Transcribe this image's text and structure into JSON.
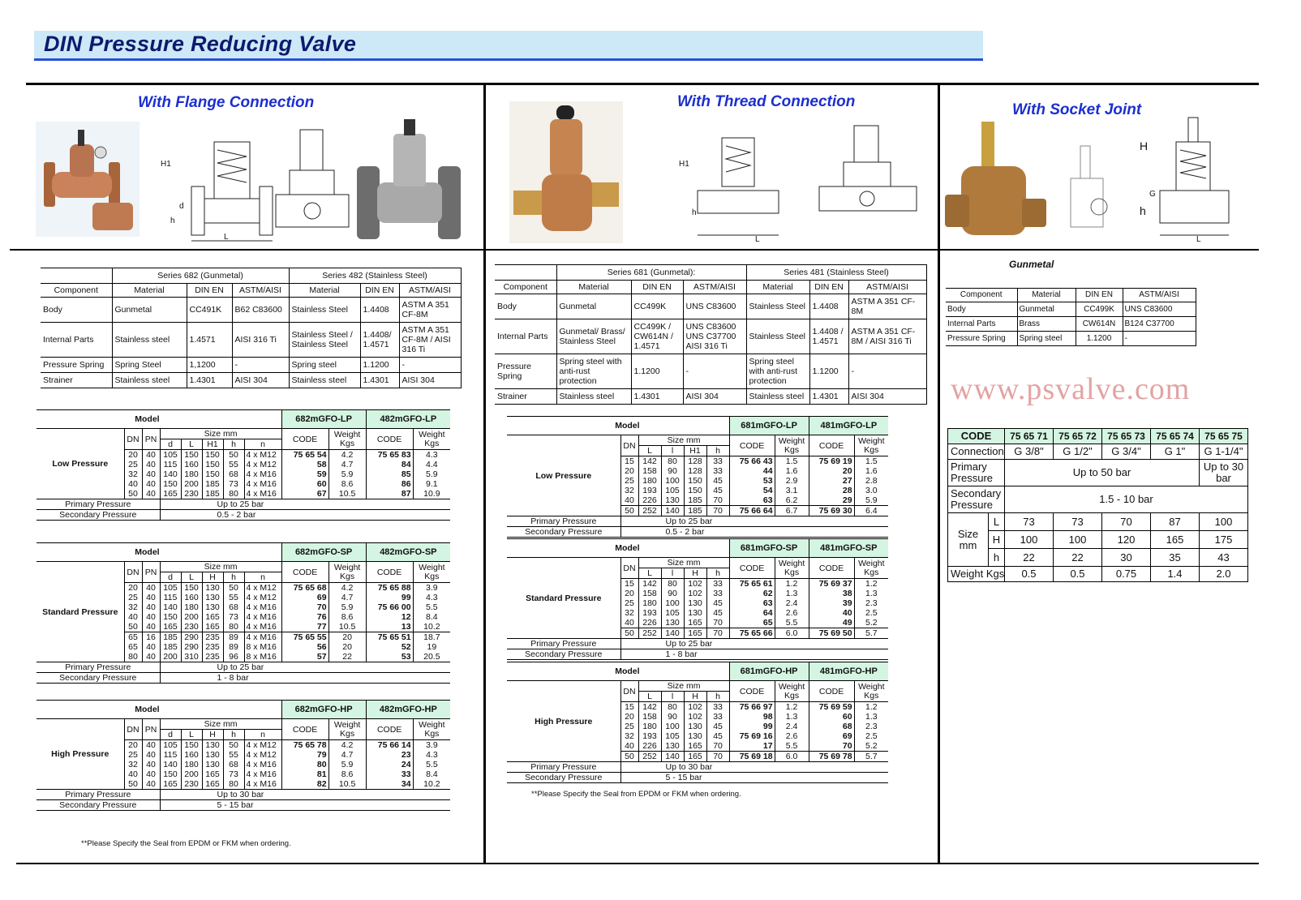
{
  "title": "DIN Pressure Reducing Valve",
  "watermark": "www.psvalve.com",
  "flange": {
    "heading": "With Flange Connection",
    "drawing_labels": [
      "H1",
      "d",
      "h",
      "L",
      "H1"
    ],
    "materials": {
      "series_a": "Series 682 (Gunmetal)",
      "series_b": "Series 482 (Stainless Steel)",
      "headers": [
        "Component",
        "Material",
        "DIN EN",
        "ASTM/AISI",
        "Material",
        "DIN EN",
        "ASTM/AISI"
      ],
      "rows": [
        [
          "Body",
          "Gunmetal",
          "CC491K",
          "B62 C83600",
          "Stainless Steel",
          "1.4408",
          "ASTM A 351 CF-8M"
        ],
        [
          "Internal Parts",
          "Stainless steel",
          "1.4571",
          "AISI 316 Ti",
          "Stainless Steel / Stainless Steel",
          "1.4408/ 1.4571",
          "ASTM A 351 CF-8M / AISI 316 Ti"
        ],
        [
          "Pressure Spring",
          "Spring Steel",
          "1,1200",
          "-",
          "Spring steel",
          "1.1200",
          "-"
        ],
        [
          "Strainer",
          "Stainless steel",
          "1.4301",
          "AISI 304",
          "Stainless steel",
          "1.4301",
          "AISI 304"
        ]
      ]
    },
    "columns": {
      "dn": "DN",
      "pn": "PN",
      "size": "Size mm",
      "dims": [
        "d",
        "L",
        "H1",
        "h",
        "n"
      ],
      "code": "CODE",
      "weight": "Weight Kgs",
      "model": "Model"
    },
    "tables": [
      {
        "label": "Low Pressure",
        "models": [
          "682mGFO-LP",
          "482mGFO-LP"
        ],
        "dims": [
          "d",
          "L",
          "H1",
          "h",
          "n"
        ],
        "row_groups": [
          [
            [
              "20",
              "40",
              "105",
              "150",
              "150",
              "50",
              "4 x M12",
              "75 65 54",
              "4.2",
              "75 65 83",
              "4.3"
            ],
            [
              "25",
              "40",
              "115",
              "160",
              "150",
              "55",
              "4 x M12",
              "58",
              "4.7",
              "84",
              "4.4"
            ],
            [
              "32",
              "40",
              "140",
              "180",
              "150",
              "68",
              "4 x M16",
              "59",
              "5.9",
              "85",
              "5.9"
            ],
            [
              "40",
              "40",
              "150",
              "200",
              "185",
              "73",
              "4 x M16",
              "60",
              "8.6",
              "86",
              "9.1"
            ],
            [
              "50",
              "40",
              "165",
              "230",
              "185",
              "80",
              "4 x M16",
              "67",
              "10.5",
              "87",
              "10.9"
            ]
          ]
        ],
        "primary_label": "Primary Pressure",
        "primary": "Up to 25 bar",
        "secondary_label": "Secondary Pressure",
        "secondary": "0.5 - 2  bar"
      },
      {
        "label": "Standard Pressure",
        "models": [
          "682mGFO-SP",
          "482mGFO-SP"
        ],
        "dims": [
          "d",
          "L",
          "H",
          "h",
          "n"
        ],
        "row_groups": [
          [
            [
              "20",
              "40",
              "105",
              "150",
              "130",
              "50",
              "4 x M12",
              "75 65 68",
              "4.2",
              "75 65 88",
              "3.9"
            ],
            [
              "25",
              "40",
              "115",
              "160",
              "130",
              "55",
              "4 x M12",
              "69",
              "4.7",
              "99",
              "4.3"
            ],
            [
              "32",
              "40",
              "140",
              "180",
              "130",
              "68",
              "4 x M16",
              "70",
              "5.9",
              "75 66 00",
              "5.5"
            ],
            [
              "40",
              "40",
              "150",
              "200",
              "165",
              "73",
              "4 x M16",
              "76",
              "8.6",
              "12",
              "8.4"
            ],
            [
              "50",
              "40",
              "165",
              "230",
              "165",
              "80",
              "4 x M16",
              "77",
              "10.5",
              "13",
              "10.2"
            ]
          ],
          [
            [
              "65",
              "16",
              "185",
              "290",
              "235",
              "89",
              "4 x M16",
              "75 65 55",
              "20",
              "75 65 51",
              "18.7"
            ],
            [
              "65",
              "40",
              "185",
              "290",
              "235",
              "89",
              "8 x M16",
              "56",
              "20",
              "52",
              "19"
            ],
            [
              "80",
              "40",
              "200",
              "310",
              "235",
              "96",
              "8 x M16",
              "57",
              "22",
              "53",
              "20.5"
            ]
          ]
        ],
        "primary_label": "Primary Pressure",
        "primary": "Up to 25 bar",
        "secondary_label": "Secondary Pressure",
        "secondary": "1 - 8  bar"
      },
      {
        "label": "High Pressure",
        "models": [
          "682mGFO-HP",
          "482mGFO-HP"
        ],
        "dims": [
          "d",
          "L",
          "H",
          "h",
          "n"
        ],
        "row_groups": [
          [
            [
              "20",
              "40",
              "105",
              "150",
              "130",
              "50",
              "4 x M12",
              "75 65 78",
              "4.2",
              "75 66 14",
              "3.9"
            ],
            [
              "25",
              "40",
              "115",
              "160",
              "130",
              "55",
              "4 x M12",
              "79",
              "4.7",
              "23",
              "4.3"
            ],
            [
              "32",
              "40",
              "140",
              "180",
              "130",
              "68",
              "4 x M16",
              "80",
              "5.9",
              "24",
              "5.5"
            ],
            [
              "40",
              "40",
              "150",
              "200",
              "165",
              "73",
              "4 x M16",
              "81",
              "8.6",
              "33",
              "8.4"
            ],
            [
              "50",
              "40",
              "165",
              "230",
              "165",
              "80",
              "4 x M16",
              "82",
              "10.5",
              "34",
              "10.2"
            ]
          ]
        ],
        "primary_label": "Primary Pressure",
        "primary": "Up to 30 bar",
        "secondary_label": "Secondary Pressure",
        "secondary": "5 - 15  bar"
      }
    ],
    "note": "**Please Specify the Seal from EPDM or FKM when ordering."
  },
  "thread": {
    "heading": "With Thread Connection",
    "drawing_labels": [
      "H1",
      "h",
      "L"
    ],
    "materials": {
      "series_a": "Series 681 (Gunmetal):",
      "series_b": "Series 481 (Stainless Steel)",
      "headers": [
        "Component",
        "Material",
        "DIN EN",
        "ASTM/AISI",
        "Material",
        "DIN EN",
        "ASTM/AISI"
      ],
      "rows": [
        [
          "Body",
          "Gunmetal",
          "CC499K",
          "UNS C83600",
          "Stainless Steel",
          "1.4408",
          "ASTM A 351 CF-8M"
        ],
        [
          "Internal Parts",
          "Gunmetal/ Brass/ Stainless Steel",
          "CC499K / CW614N / 1.4571",
          "UNS C83600 UNS C37700 AISI 316 Ti",
          "Stainless Steel",
          "1.4408 / 1.4571",
          "ASTM A 351 CF-8M / AISI 316 Ti"
        ],
        [
          "Pressure Spring",
          "Spring steel with anti-rust protection",
          "1.1200",
          "-",
          "Spring steel with anti-rust protection",
          "1.1200",
          "-"
        ],
        [
          "Strainer",
          "Stainless steel",
          "1.4301",
          "AISI 304",
          "Stainless steel",
          "1.4301",
          "AISI 304"
        ]
      ]
    },
    "columns": {
      "dn": "DN",
      "size": "Size mm",
      "code": "CODE",
      "weight": "Weight Kgs",
      "model": "Model"
    },
    "tables": [
      {
        "label": "Low Pressure",
        "models": [
          "681mGFO-LP",
          "481mGFO-LP"
        ],
        "dims": [
          "L",
          "l",
          "H1",
          "h"
        ],
        "row_groups": [
          [
            [
              "15",
              "142",
              "80",
              "128",
              "33",
              "75 66 43",
              "1.5",
              "75 69 19",
              "1.5"
            ],
            [
              "20",
              "158",
              "90",
              "128",
              "33",
              "44",
              "1.6",
              "20",
              "1.6"
            ],
            [
              "25",
              "180",
              "100",
              "150",
              "45",
              "53",
              "2.9",
              "27",
              "2.8"
            ],
            [
              "32",
              "193",
              "105",
              "150",
              "45",
              "54",
              "3.1",
              "28",
              "3.0"
            ],
            [
              "40",
              "226",
              "130",
              "185",
              "70",
              "63",
              "6.2",
              "29",
              "5.9"
            ]
          ],
          [
            [
              "50",
              "252",
              "140",
              "185",
              "70",
              "75 66 64",
              "6.7",
              "75 69 30",
              "6.4"
            ]
          ]
        ],
        "primary_label": "Primary Pressure",
        "primary": "Up to 25 bar",
        "secondary_label": "Secondary Pressure",
        "secondary": "0.5 - 2  bar"
      },
      {
        "label": "Standard Pressure",
        "models": [
          "681mGFO-SP",
          "481mGFO-SP"
        ],
        "dims": [
          "L",
          "l",
          "H",
          "h"
        ],
        "row_groups": [
          [
            [
              "15",
              "142",
              "80",
              "102",
              "33",
              "75 65 61",
              "1.2",
              "75 69 37",
              "1.2"
            ],
            [
              "20",
              "158",
              "90",
              "102",
              "33",
              "62",
              "1.3",
              "38",
              "1.3"
            ],
            [
              "25",
              "180",
              "100",
              "130",
              "45",
              "63",
              "2.4",
              "39",
              "2.3"
            ],
            [
              "32",
              "193",
              "105",
              "130",
              "45",
              "64",
              "2.6",
              "40",
              "2.5"
            ],
            [
              "40",
              "226",
              "130",
              "165",
              "70",
              "65",
              "5.5",
              "49",
              "5.2"
            ]
          ],
          [
            [
              "50",
              "252",
              "140",
              "165",
              "70",
              "75 65 66",
              "6.0",
              "75 69 50",
              "5.7"
            ]
          ]
        ],
        "primary_label": "Primary Pressure",
        "primary": "Up to 25 bar",
        "secondary_label": "Secondary Pressure",
        "secondary": "1 - 8  bar"
      },
      {
        "label": "High Pressure",
        "models": [
          "681mGFO-HP",
          "481mGFO-HP"
        ],
        "dims": [
          "L",
          "l",
          "H",
          "h"
        ],
        "row_groups": [
          [
            [
              "15",
              "142",
              "80",
              "102",
              "33",
              "75 66 97",
              "1.2",
              "75 69 59",
              "1.2"
            ],
            [
              "20",
              "158",
              "90",
              "102",
              "33",
              "98",
              "1.3",
              "60",
              "1.3"
            ],
            [
              "25",
              "180",
              "100",
              "130",
              "45",
              "99",
              "2.4",
              "68",
              "2.3"
            ],
            [
              "32",
              "193",
              "105",
              "130",
              "45",
              "75 69 16",
              "2.6",
              "69",
              "2.5"
            ],
            [
              "40",
              "226",
              "130",
              "165",
              "70",
              "17",
              "5.5",
              "70",
              "5.2"
            ]
          ],
          [
            [
              "50",
              "252",
              "140",
              "165",
              "70",
              "75 69 18",
              "6.0",
              "75 69 78",
              "5.7"
            ]
          ]
        ],
        "primary_label": "Primary Pressure",
        "primary": "Up to 30 bar",
        "secondary_label": "Secondary Pressure",
        "secondary": "5 - 15  bar"
      }
    ],
    "note": "**Please Specify the Seal from EPDM or FKM when ordering."
  },
  "socket": {
    "heading": "With Socket Joint",
    "drawing_labels": [
      "H",
      "G",
      "h",
      "L"
    ],
    "material_title": "Gunmetal",
    "materials": {
      "headers": [
        "Component",
        "Material",
        "DIN EN",
        "ASTM/AISI"
      ],
      "rows": [
        [
          "Body",
          "Gunmetal",
          "CC499K",
          "UNS C83600"
        ],
        [
          "Internal Parts",
          "Brass",
          "CW614N",
          "B124 C37700"
        ],
        [
          "Pressure Spring",
          "Spring steel",
          "1.1200",
          "-"
        ]
      ]
    },
    "spec": {
      "code_label": "CODE",
      "codes": [
        "75 65 71",
        "75 65 72",
        "75 65 73",
        "75 65 74",
        "75 65 75"
      ],
      "connection_label": "Connection",
      "connections": [
        "G 3/8\"",
        "G 1/2\"",
        "G 3/4\"",
        "G 1\"",
        "G 1-1/4\""
      ],
      "primary_label": "Primary Pressure",
      "primary": [
        "Up to 50 bar",
        "Up to 30 bar"
      ],
      "secondary_label": "Secondary Pressure",
      "secondary": "1.5 - 10 bar",
      "size_label": "Size mm",
      "sizes": [
        {
          "dim": "L",
          "values": [
            "73",
            "73",
            "70",
            "87",
            "100"
          ]
        },
        {
          "dim": "H",
          "values": [
            "100",
            "100",
            "120",
            "165",
            "175"
          ]
        },
        {
          "dim": "h",
          "values": [
            "22",
            "22",
            "30",
            "35",
            "43"
          ]
        }
      ],
      "weight_label": "Weight Kgs",
      "weights": [
        "0.5",
        "0.5",
        "0.75",
        "1.4",
        "2.0"
      ]
    }
  }
}
